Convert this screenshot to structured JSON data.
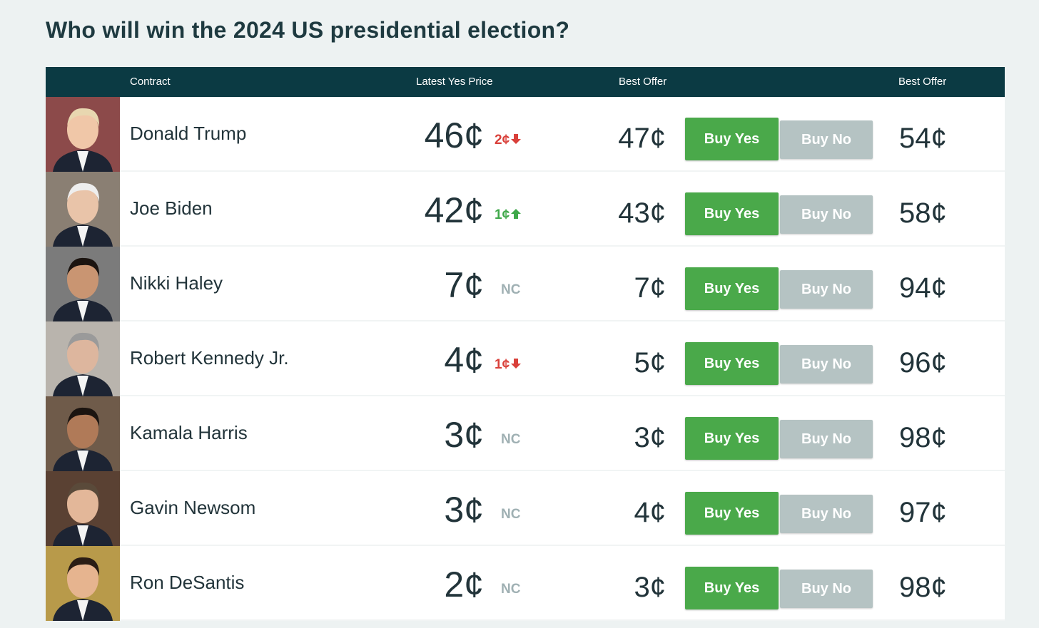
{
  "header": {
    "title": "Who will win the 2024 US presidential election?"
  },
  "table": {
    "columns": {
      "contract": "Contract",
      "latest": "Latest Yes Price",
      "offer_yes": "Best Offer",
      "offer_no": "Best Offer"
    },
    "buttons": {
      "yes": "Buy Yes",
      "no": "Buy No"
    },
    "rows": [
      {
        "name": "Donald Trump",
        "price": "46¢",
        "change": "2¢",
        "trend": "down",
        "offer_yes": "47¢",
        "offer_no": "54¢"
      },
      {
        "name": "Joe Biden",
        "price": "42¢",
        "change": "1¢",
        "trend": "up",
        "offer_yes": "43¢",
        "offer_no": "58¢"
      },
      {
        "name": "Nikki Haley",
        "price": "7¢",
        "change": "NC",
        "offer_yes": "7¢",
        "offer_no": "94¢"
      },
      {
        "name": "Robert Kennedy Jr.",
        "price": "4¢",
        "change": "1¢",
        "trend": "down",
        "offer_yes": "5¢",
        "offer_no": "96¢"
      },
      {
        "name": "Kamala Harris",
        "price": "3¢",
        "change": "NC",
        "offer_yes": "3¢",
        "offer_no": "98¢"
      },
      {
        "name": "Gavin Newsom",
        "price": "3¢",
        "change": "NC",
        "offer_yes": "4¢",
        "offer_no": "97¢"
      },
      {
        "name": "Ron DeSantis",
        "price": "2¢",
        "change": "NC",
        "offer_yes": "3¢",
        "offer_no": "98¢"
      }
    ]
  }
}
